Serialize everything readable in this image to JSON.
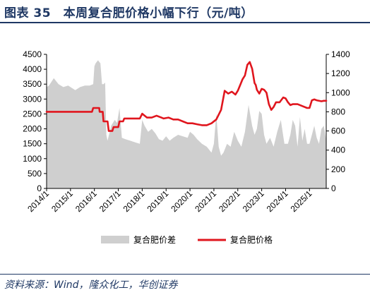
{
  "header": {
    "title": "图表 35　本周复合肥价格小幅下行（元/吨）"
  },
  "footer": {
    "source": "资料来源：Wind，隆众化工，华创证券"
  },
  "colors": {
    "area": "#cfcfcf",
    "line": "#e0161e",
    "title": "#1f3864"
  },
  "chart_data": {
    "type": "line",
    "title": "",
    "xlabel": "",
    "ylabel": "",
    "grid": false,
    "legend_position": "bottom",
    "x_tick_labels": [
      "2014/1",
      "2015/1",
      "2016/1",
      "2017/1",
      "2018/1",
      "2019/1",
      "2020/1",
      "2021/1",
      "2022/1",
      "2023/1",
      "2024/1",
      "2025/1"
    ],
    "x_range": [
      2014.0,
      2025.7
    ],
    "y_left": {
      "range": [
        0,
        4500
      ],
      "ticks": [
        "0",
        "500",
        "1000",
        "1500",
        "2000",
        "2500",
        "3000",
        "3500",
        "4000",
        "4500"
      ]
    },
    "y_right": {
      "range": [
        0,
        1400
      ],
      "ticks": [
        "0",
        "200",
        "400",
        "600",
        "800",
        "1000",
        "1200",
        "1400"
      ]
    },
    "series": [
      {
        "name": "复合肥价差",
        "type": "area",
        "axis": "left",
        "x": [
          2014.0,
          2014.1,
          2014.3,
          2014.5,
          2014.7,
          2014.9,
          2015.0,
          2015.2,
          2015.4,
          2015.6,
          2015.8,
          2015.95,
          2016.0,
          2016.05,
          2016.15,
          2016.25,
          2016.32,
          2016.38,
          2016.45,
          2016.5,
          2016.55,
          2016.7,
          2016.85,
          2016.95,
          2017.05,
          2017.15,
          2017.3,
          2017.5,
          2017.7,
          2017.9,
          2018.0,
          2018.1,
          2018.25,
          2018.4,
          2018.55,
          2018.7,
          2018.85,
          2019.0,
          2019.15,
          2019.3,
          2019.5,
          2019.7,
          2019.9,
          2020.0,
          2020.15,
          2020.3,
          2020.5,
          2020.7,
          2020.9,
          2021.0,
          2021.1,
          2021.2,
          2021.3,
          2021.4,
          2021.55,
          2021.7,
          2021.85,
          2022.0,
          2022.15,
          2022.3,
          2022.45,
          2022.6,
          2022.7,
          2022.8,
          2022.9,
          2023.0,
          2023.1,
          2023.2,
          2023.35,
          2023.5,
          2023.65,
          2023.8,
          2023.95,
          2024.1,
          2024.2,
          2024.3,
          2024.4,
          2024.5,
          2024.6,
          2024.7,
          2024.8,
          2024.9,
          2025.0,
          2025.1,
          2025.2,
          2025.3,
          2025.4,
          2025.5,
          2025.6,
          2025.7
        ],
        "values": [
          3400,
          3450,
          3700,
          3500,
          3400,
          3450,
          3400,
          3300,
          3400,
          3450,
          3450,
          3500,
          4100,
          4200,
          4300,
          4200,
          3500,
          3500,
          3550,
          1800,
          1600,
          2100,
          2300,
          2200,
          2700,
          1700,
          1650,
          1600,
          1550,
          1500,
          2300,
          2100,
          1900,
          2000,
          1850,
          1650,
          1600,
          1750,
          1600,
          1700,
          1800,
          1750,
          1700,
          1900,
          1800,
          1650,
          1500,
          1400,
          1200,
          1500,
          2500,
          1400,
          1100,
          1200,
          1500,
          1400,
          1900,
          1600,
          1400,
          1900,
          2800,
          2100,
          1800,
          2000,
          2600,
          2500,
          1800,
          1500,
          1700,
          1400,
          1900,
          2300,
          1500,
          1500,
          1800,
          2300,
          2100,
          1400,
          2400,
          1600,
          2000,
          1500,
          1500,
          1800,
          2100,
          1700,
          1500,
          2000,
          2100,
          1600
        ]
      },
      {
        "name": "复合肥价格",
        "type": "line",
        "axis": "right",
        "x": [
          2014.0,
          2015.9,
          2015.95,
          2016.2,
          2016.22,
          2016.35,
          2016.38,
          2016.55,
          2016.6,
          2016.75,
          2016.8,
          2017.0,
          2017.05,
          2017.2,
          2017.25,
          2017.9,
          2018.0,
          2018.1,
          2018.2,
          2018.4,
          2018.6,
          2018.8,
          2018.9,
          2019.1,
          2019.3,
          2019.5,
          2019.7,
          2019.9,
          2020.1,
          2020.3,
          2020.5,
          2020.7,
          2020.9,
          2021.1,
          2021.3,
          2021.45,
          2021.6,
          2021.75,
          2021.9,
          2022.0,
          2022.1,
          2022.2,
          2022.3,
          2022.4,
          2022.5,
          2022.6,
          2022.7,
          2022.75,
          2022.8,
          2022.9,
          2023.0,
          2023.1,
          2023.2,
          2023.3,
          2023.4,
          2023.5,
          2023.6,
          2023.75,
          2023.9,
          2024.0,
          2024.1,
          2024.2,
          2024.3,
          2024.5,
          2024.7,
          2024.9,
          2025.0,
          2025.1,
          2025.2,
          2025.3,
          2025.5,
          2025.6,
          2025.7
        ],
        "values": [
          800,
          800,
          840,
          840,
          800,
          800,
          700,
          700,
          600,
          600,
          640,
          640,
          700,
          700,
          730,
          730,
          780,
          760,
          740,
          740,
          760,
          740,
          730,
          740,
          720,
          720,
          700,
          680,
          680,
          670,
          660,
          660,
          680,
          720,
          820,
          1020,
          990,
          1010,
          980,
          1020,
          1080,
          1140,
          1180,
          1290,
          1320,
          1250,
          1100,
          1080,
          1030,
          990,
          1040,
          1030,
          1000,
          880,
          820,
          850,
          900,
          900,
          950,
          940,
          900,
          870,
          880,
          880,
          860,
          840,
          840,
          920,
          930,
          920,
          910,
          915,
          915
        ]
      }
    ]
  }
}
